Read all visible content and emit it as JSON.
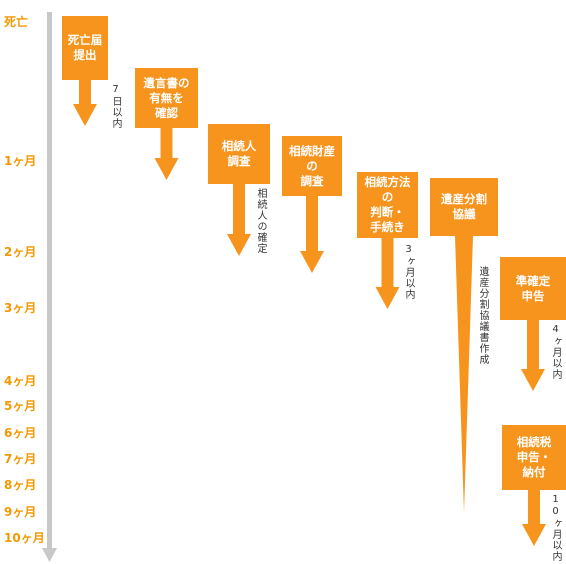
{
  "timeline": [
    "死亡",
    "1ヶ月",
    "2ヶ月",
    "3ヶ月",
    "4ヶ月",
    "5ヶ月",
    "6ヶ月",
    "7ヶ月",
    "8ヶ月",
    "9ヶ月",
    "10ヶ月"
  ],
  "steps": [
    {
      "lines": [
        "死亡届",
        "提出"
      ],
      "note": "7日以内"
    },
    {
      "lines": [
        "遺言書の",
        "有無を",
        "確認"
      ]
    },
    {
      "lines": [
        "相続人",
        "調査"
      ],
      "note": "相続人の確定"
    },
    {
      "lines": [
        "相続財産",
        "の",
        "調査"
      ]
    },
    {
      "lines": [
        "相続方法",
        "の",
        "判断・",
        "手続き"
      ],
      "note": "3ヶ月以内"
    },
    {
      "lines": [
        "遺産分割",
        "協議"
      ],
      "note": "遺産分割協議書作成"
    },
    {
      "lines": [
        "準確定",
        "申告"
      ],
      "note": "4ヶ月以内"
    },
    {
      "lines": [
        "相続税",
        "申告・",
        "納付"
      ],
      "note": "10ヶ月以内"
    }
  ]
}
